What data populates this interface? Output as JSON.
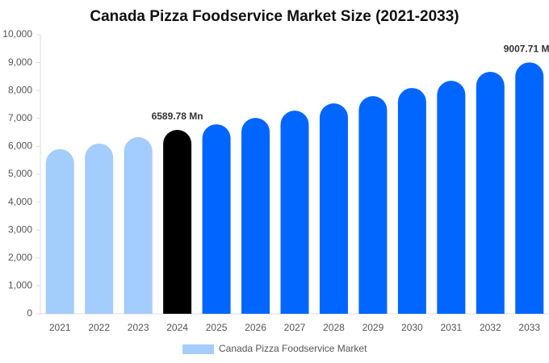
{
  "chart_data": {
    "type": "bar",
    "title": "Canada Pizza Foodservice Market Size (2021-2033)",
    "categories": [
      "2021",
      "2022",
      "2023",
      "2024",
      "2025",
      "2026",
      "2027",
      "2028",
      "2029",
      "2030",
      "2031",
      "2032",
      "2033"
    ],
    "series": [
      {
        "name": "Canada Pizza Foodservice Market",
        "color": "#a3cdfd",
        "colors": [
          "#a3cdfd",
          "#a3cdfd",
          "#a3cdfd",
          "#000000",
          "#0066ff",
          "#0066ff",
          "#0066ff",
          "#0066ff",
          "#0066ff",
          "#0066ff",
          "#0066ff",
          "#0066ff",
          "#0066ff"
        ],
        "values": [
          5900,
          6100,
          6330,
          6589.78,
          6790,
          7020,
          7280,
          7540,
          7800,
          8090,
          8350,
          8670,
          9007.71
        ],
        "value_labels": [
          null,
          null,
          null,
          "6589.78 Mn",
          null,
          null,
          null,
          null,
          null,
          null,
          null,
          null,
          "9007.71 Mn"
        ]
      }
    ],
    "ylim": [
      0,
      10000
    ],
    "yticks": [
      0,
      {
        "value": 1000,
        "label": "1,000"
      },
      {
        "value": 2000,
        "label": "2,000"
      },
      {
        "value": 3000,
        "label": "3,000"
      },
      {
        "value": 4000,
        "label": "4,000"
      },
      {
        "value": 5000,
        "label": "5,000"
      },
      {
        "value": 6000,
        "label": "6,000"
      },
      {
        "value": 7000,
        "label": "7,000"
      },
      {
        "value": 8000,
        "label": "8,000"
      },
      {
        "value": 9000,
        "label": "9,000"
      },
      {
        "value": 10000,
        "label": "10,000"
      }
    ],
    "grid": false
  }
}
